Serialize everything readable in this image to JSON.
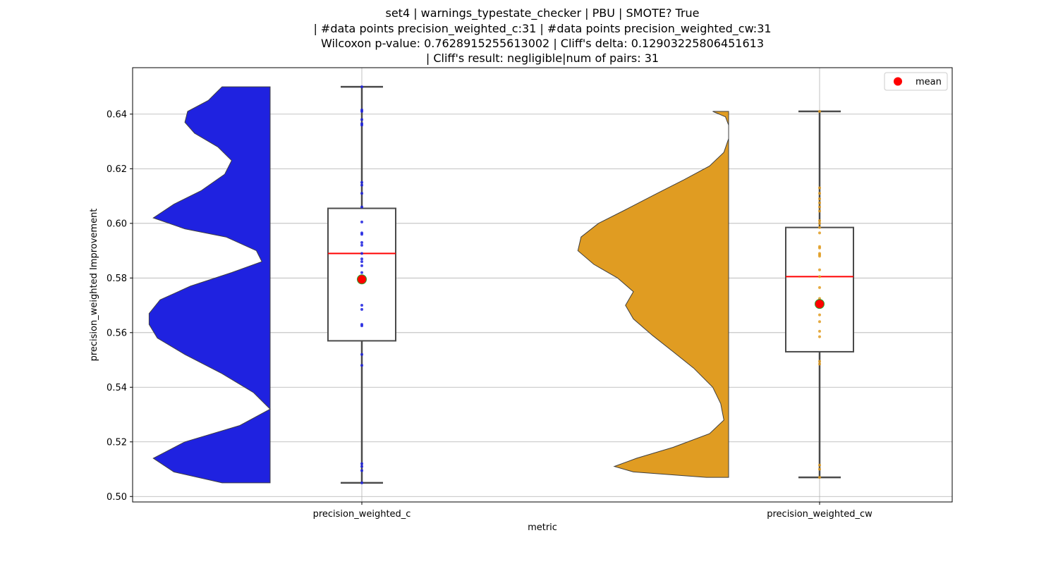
{
  "chart_data": {
    "type": "violin-box",
    "title_lines": [
      "set4 | warnings_typestate_checker | PBU | SMOTE? True",
      "| #data points precision_weighted_c:31 | #data points precision_weighted_cw:31",
      "Wilcoxon p-value: 0.7628915255613002 | Cliff's delta: 0.12903225806451613",
      "| Cliff's result: negligible|num of pairs: 31"
    ],
    "xlabel": "metric",
    "ylabel": "precision_weighted Improvement",
    "ylim": [
      0.498,
      0.657
    ],
    "yticks": [
      "0.50",
      "0.52",
      "0.54",
      "0.56",
      "0.58",
      "0.60",
      "0.62",
      "0.64"
    ],
    "grid": true,
    "legend": {
      "placement": "top-right",
      "entries": [
        {
          "label": "mean",
          "color": "#ff0000"
        }
      ]
    },
    "categories": [
      "precision_weighted_c",
      "precision_weighted_cw"
    ],
    "groups": [
      {
        "category": "precision_weighted_c",
        "violin_color": "#1f22e0",
        "point_color": "#1f22e0",
        "min": 0.505,
        "q1": 0.557,
        "median": 0.589,
        "q3": 0.6055,
        "max": 0.65,
        "mean": 0.5795,
        "density": [
          [
            0.505,
            0.35
          ],
          [
            0.509,
            0.7
          ],
          [
            0.514,
            0.85
          ],
          [
            0.52,
            0.62
          ],
          [
            0.526,
            0.22
          ],
          [
            0.532,
            0.0
          ],
          [
            0.538,
            0.12
          ],
          [
            0.545,
            0.35
          ],
          [
            0.552,
            0.62
          ],
          [
            0.558,
            0.82
          ],
          [
            0.563,
            0.88
          ],
          [
            0.567,
            0.88
          ],
          [
            0.572,
            0.8
          ],
          [
            0.577,
            0.58
          ],
          [
            0.582,
            0.28
          ],
          [
            0.586,
            0.06
          ],
          [
            0.59,
            0.1
          ],
          [
            0.595,
            0.32
          ],
          [
            0.598,
            0.62
          ],
          [
            0.602,
            0.85
          ],
          [
            0.607,
            0.7
          ],
          [
            0.612,
            0.5
          ],
          [
            0.618,
            0.33
          ],
          [
            0.623,
            0.28
          ],
          [
            0.628,
            0.38
          ],
          [
            0.633,
            0.55
          ],
          [
            0.637,
            0.62
          ],
          [
            0.641,
            0.6
          ],
          [
            0.645,
            0.45
          ],
          [
            0.65,
            0.35
          ]
        ],
        "points": [
          0.505,
          0.5095,
          0.511,
          0.512,
          0.548,
          0.552,
          0.5625,
          0.563,
          0.5685,
          0.57,
          0.58,
          0.582,
          0.5845,
          0.586,
          0.587,
          0.589,
          0.592,
          0.593,
          0.596,
          0.5965,
          0.6005,
          0.606,
          0.611,
          0.614,
          0.615,
          0.636,
          0.6365,
          0.638,
          0.641,
          0.6415,
          0.65
        ]
      },
      {
        "category": "precision_weighted_cw",
        "violin_color": "#e09c22",
        "point_color": "#e09c22",
        "min": 0.507,
        "q1": 0.553,
        "median": 0.5805,
        "q3": 0.5985,
        "max": 0.641,
        "mean": 0.5705,
        "density": [
          [
            0.507,
            0.14
          ],
          [
            0.509,
            0.6
          ],
          [
            0.511,
            0.72
          ],
          [
            0.514,
            0.58
          ],
          [
            0.518,
            0.35
          ],
          [
            0.523,
            0.12
          ],
          [
            0.528,
            0.03
          ],
          [
            0.534,
            0.05
          ],
          [
            0.54,
            0.1
          ],
          [
            0.547,
            0.22
          ],
          [
            0.553,
            0.35
          ],
          [
            0.559,
            0.48
          ],
          [
            0.565,
            0.6
          ],
          [
            0.57,
            0.65
          ],
          [
            0.575,
            0.6
          ],
          [
            0.58,
            0.7
          ],
          [
            0.585,
            0.85
          ],
          [
            0.59,
            0.95
          ],
          [
            0.595,
            0.93
          ],
          [
            0.6,
            0.82
          ],
          [
            0.605,
            0.65
          ],
          [
            0.611,
            0.45
          ],
          [
            0.616,
            0.28
          ],
          [
            0.621,
            0.12
          ],
          [
            0.626,
            0.03
          ],
          [
            0.631,
            0.0
          ],
          [
            0.636,
            0.0
          ],
          [
            0.639,
            0.02
          ],
          [
            0.641,
            0.1
          ]
        ],
        "points": [
          0.507,
          0.51,
          0.5115,
          0.5485,
          0.5585,
          0.5605,
          0.564,
          0.5665,
          0.57,
          0.5705,
          0.5725,
          0.5765,
          0.5805,
          0.583,
          0.588,
          0.5885,
          0.589,
          0.591,
          0.5915,
          0.5965,
          0.5985,
          0.6,
          0.601,
          0.6045,
          0.606,
          0.6075,
          0.609,
          0.611,
          0.613,
          0.641,
          0.5495
        ]
      }
    ]
  }
}
